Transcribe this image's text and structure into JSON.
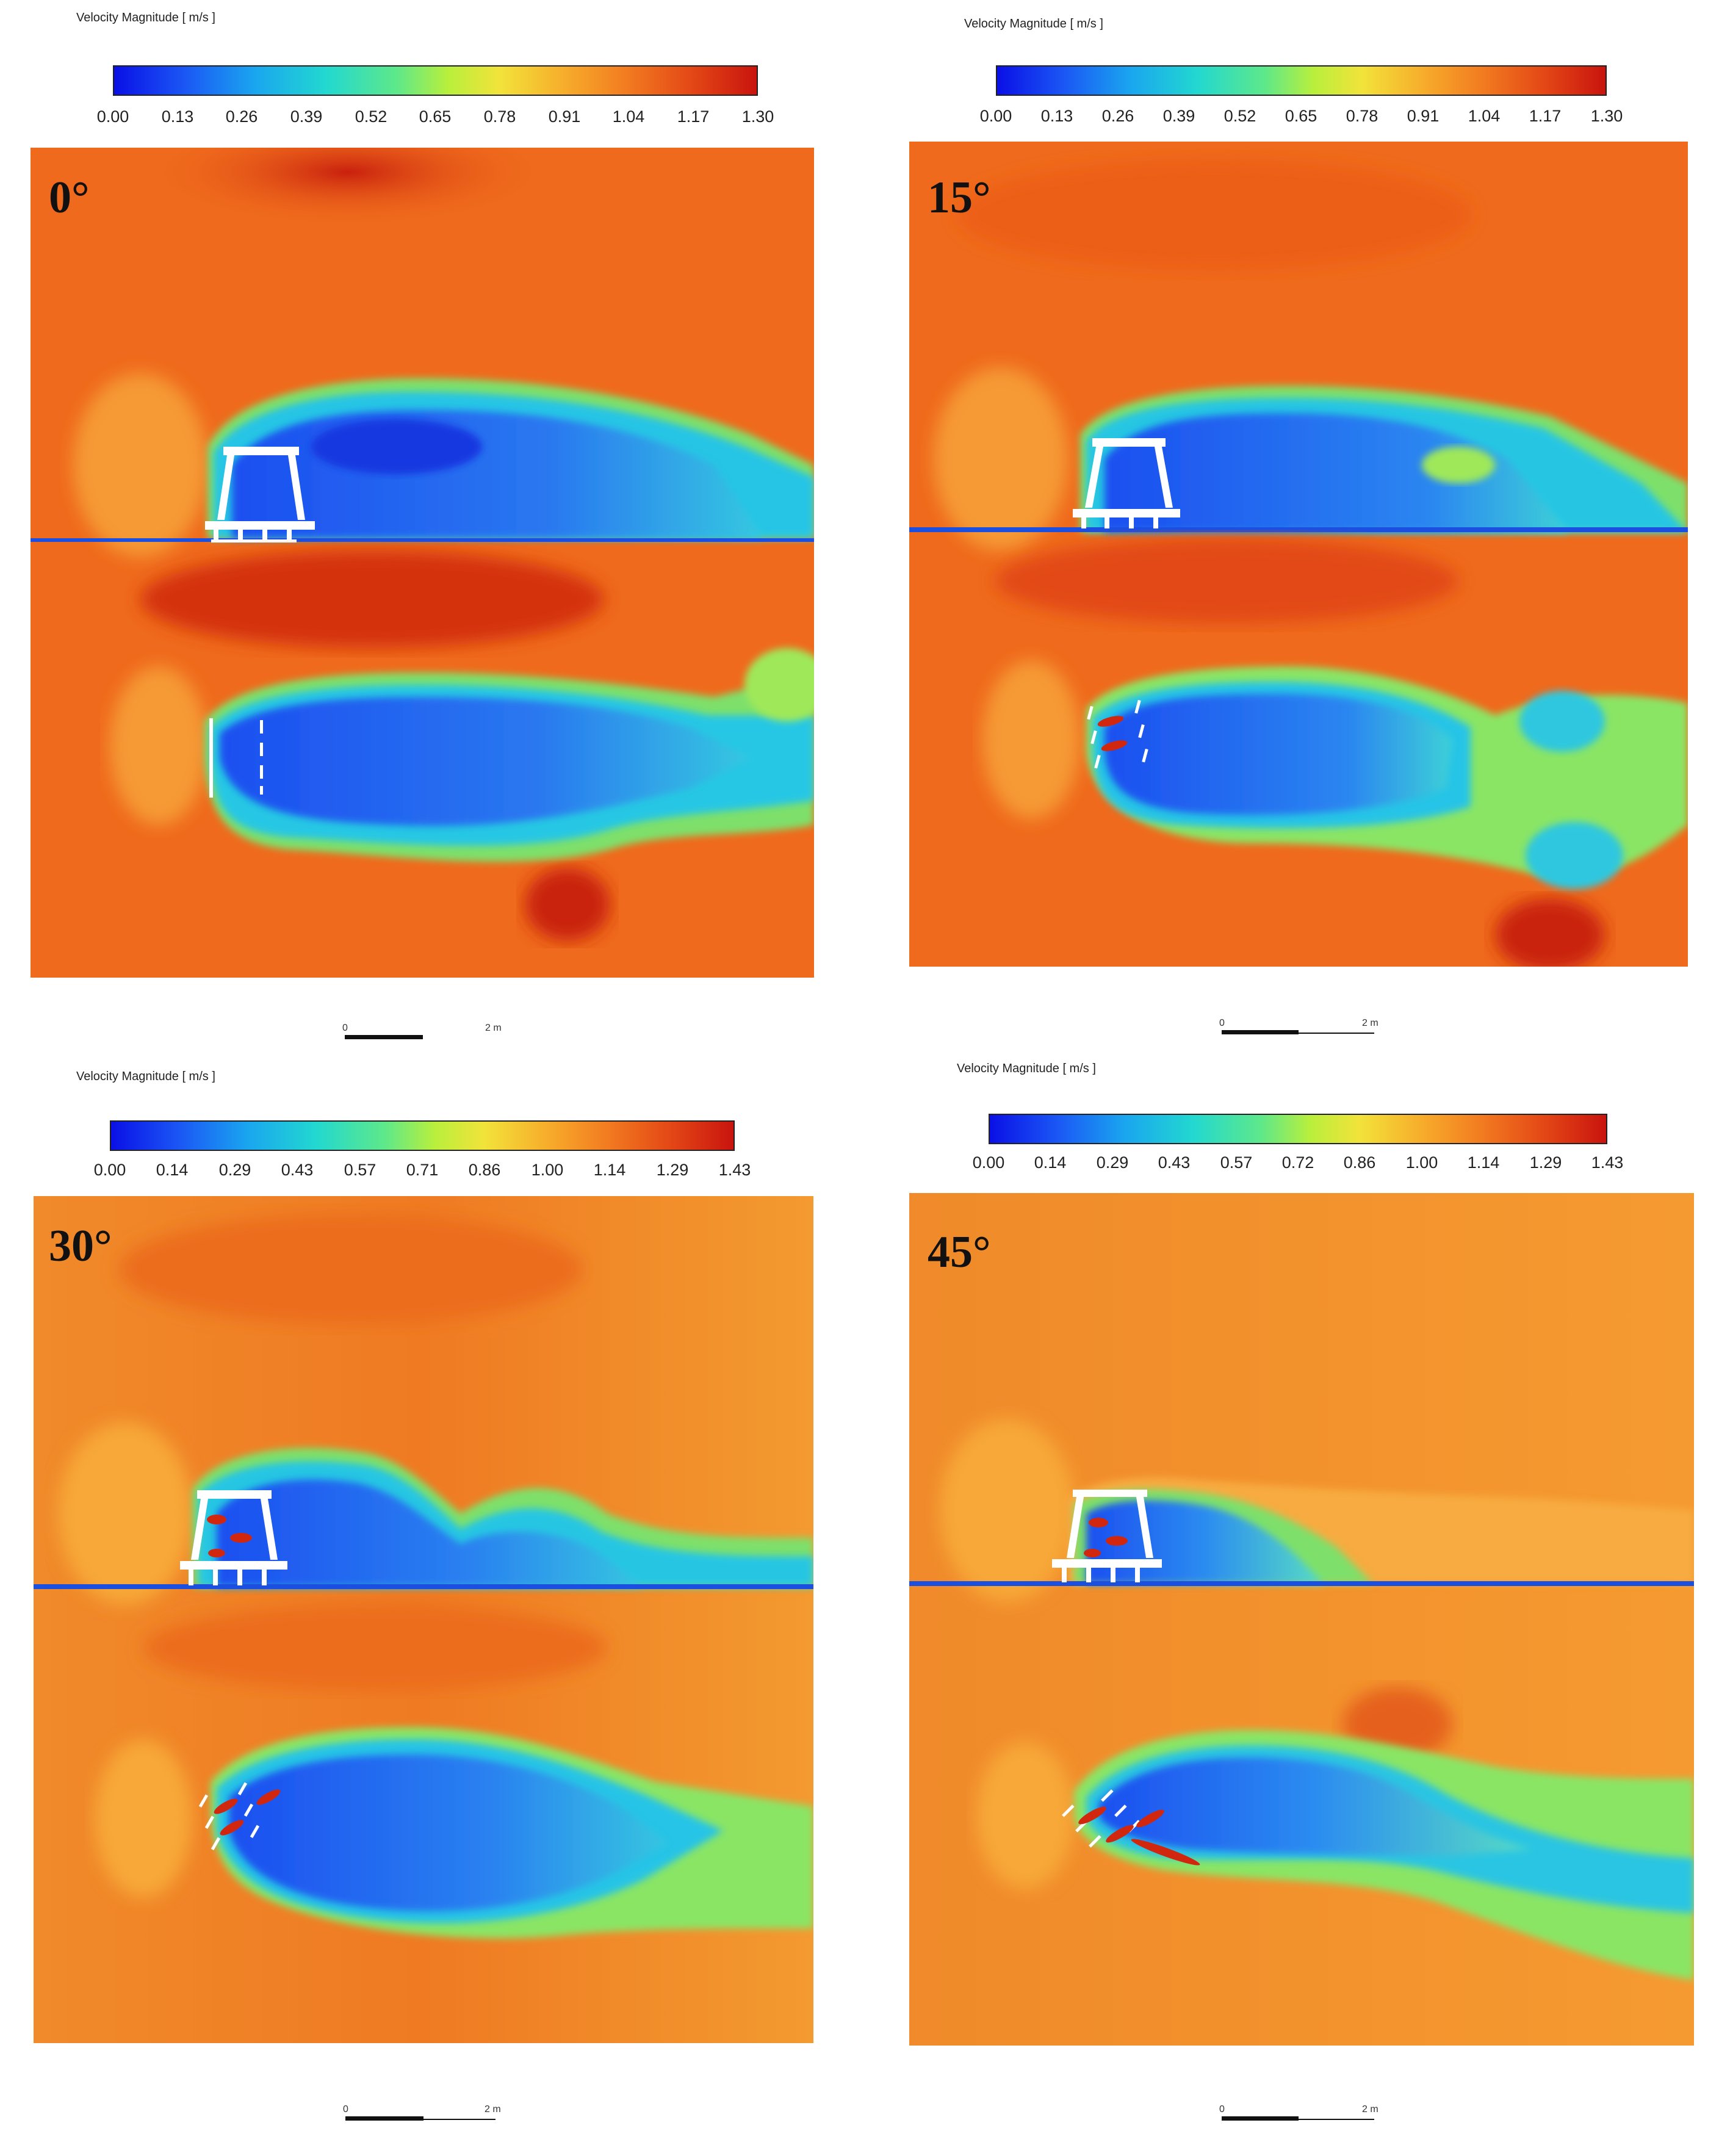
{
  "panels": [
    {
      "id": "p0",
      "angle": "0°",
      "colorbar_title": "Velocity Magnitude [ m/s ]",
      "ticks": [
        "0.00",
        "0.13",
        "0.26",
        "0.39",
        "0.52",
        "0.65",
        "0.78",
        "0.91",
        "1.04",
        "1.17",
        "1.30"
      ],
      "scale_start": "0",
      "scale_end": "2 m"
    },
    {
      "id": "p15",
      "angle": "15°",
      "colorbar_title": "Velocity Magnitude [ m/s ]",
      "ticks": [
        "0.00",
        "0.13",
        "0.26",
        "0.39",
        "0.52",
        "0.65",
        "0.78",
        "0.91",
        "1.04",
        "1.17",
        "1.30"
      ],
      "scale_start": "0",
      "scale_end": "2 m"
    },
    {
      "id": "p30",
      "angle": "30°",
      "colorbar_title": "Velocity Magnitude [ m/s ]",
      "ticks": [
        "0.00",
        "0.14",
        "0.29",
        "0.43",
        "0.57",
        "0.71",
        "0.86",
        "1.00",
        "1.14",
        "1.29",
        "1.43"
      ],
      "scale_start": "0",
      "scale_end": "2 m"
    },
    {
      "id": "p45",
      "angle": "45°",
      "colorbar_title": "Velocity Magnitude [ m/s ]",
      "ticks": [
        "0.00",
        "0.14",
        "0.29",
        "0.43",
        "0.57",
        "0.72",
        "0.86",
        "1.00",
        "1.14",
        "1.29",
        "1.43"
      ],
      "scale_start": "0",
      "scale_end": "2 m"
    }
  ],
  "colors": {
    "freestream": "#ef6a1c",
    "freestream_light": "#f7952c",
    "high": "#d2270f",
    "wake_low": "#1f5ef0",
    "wake_mid": "#23c1e6",
    "shear": "#7fe06a",
    "structure": "#ffffff",
    "ground": "#1b4fe0"
  }
}
